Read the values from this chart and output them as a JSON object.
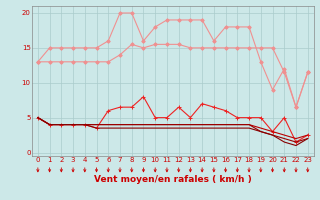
{
  "xlabel": "Vent moyen/en rafales ( km/h )",
  "background_color": "#cce8e8",
  "grid_color": "#aacccc",
  "x": [
    0,
    1,
    2,
    3,
    4,
    5,
    6,
    7,
    8,
    9,
    10,
    11,
    12,
    13,
    14,
    15,
    16,
    17,
    18,
    19,
    20,
    21,
    22,
    23
  ],
  "series": [
    {
      "name": "salmon_upper",
      "color": "#f09090",
      "linewidth": 0.8,
      "marker": "D",
      "markersize": 1.8,
      "values": [
        13,
        15,
        15,
        15,
        15,
        15,
        16,
        20,
        20,
        16,
        18,
        19,
        19,
        19,
        19,
        16,
        18,
        18,
        18,
        13,
        9,
        12,
        6.5,
        11.5
      ]
    },
    {
      "name": "salmon_lower",
      "color": "#f09090",
      "linewidth": 0.8,
      "marker": "D",
      "markersize": 1.8,
      "values": [
        13,
        13,
        13,
        13,
        13,
        13,
        13,
        14,
        15.5,
        15,
        15.5,
        15.5,
        15.5,
        15,
        15,
        15,
        15,
        15,
        15,
        15,
        15,
        11.5,
        6.5,
        11.5
      ]
    },
    {
      "name": "red_markers",
      "color": "#ee2222",
      "linewidth": 0.8,
      "marker": "+",
      "markersize": 3.0,
      "markeredgewidth": 0.7,
      "values": [
        5,
        4,
        4,
        4,
        4,
        3.5,
        6,
        6.5,
        6.5,
        8,
        5,
        5,
        6.5,
        5,
        7,
        6.5,
        6,
        5,
        5,
        5,
        3,
        5,
        1.5,
        2.5
      ]
    },
    {
      "name": "dark_red1",
      "color": "#bb0000",
      "linewidth": 0.8,
      "marker": null,
      "values": [
        5,
        4,
        4,
        4,
        4,
        4,
        4,
        4,
        4,
        4,
        4,
        4,
        4,
        4,
        4,
        4,
        4,
        4,
        4,
        3.5,
        3,
        2.5,
        2,
        2.5
      ]
    },
    {
      "name": "dark_red2",
      "color": "#990000",
      "linewidth": 0.8,
      "marker": null,
      "values": [
        5,
        4,
        4,
        4,
        4,
        4,
        4,
        4,
        4,
        4,
        4,
        4,
        4,
        4,
        4,
        4,
        4,
        4,
        4,
        3.0,
        2.5,
        2.0,
        1.5,
        2.0
      ]
    },
    {
      "name": "dark_red3",
      "color": "#880000",
      "linewidth": 0.8,
      "marker": null,
      "values": [
        5,
        4,
        4,
        4,
        4,
        3.5,
        3.5,
        3.5,
        3.5,
        3.5,
        3.5,
        3.5,
        3.5,
        3.5,
        3.5,
        3.5,
        3.5,
        3.5,
        3.5,
        3.0,
        2.5,
        1.5,
        1.0,
        2.0
      ]
    }
  ],
  "ylim": [
    -0.5,
    21
  ],
  "yticks": [
    0,
    5,
    10,
    15,
    20
  ],
  "xlim": [
    -0.5,
    23.5
  ],
  "arrow_color": "#cc0000",
  "tick_fontsize": 5,
  "label_fontsize": 6.5
}
